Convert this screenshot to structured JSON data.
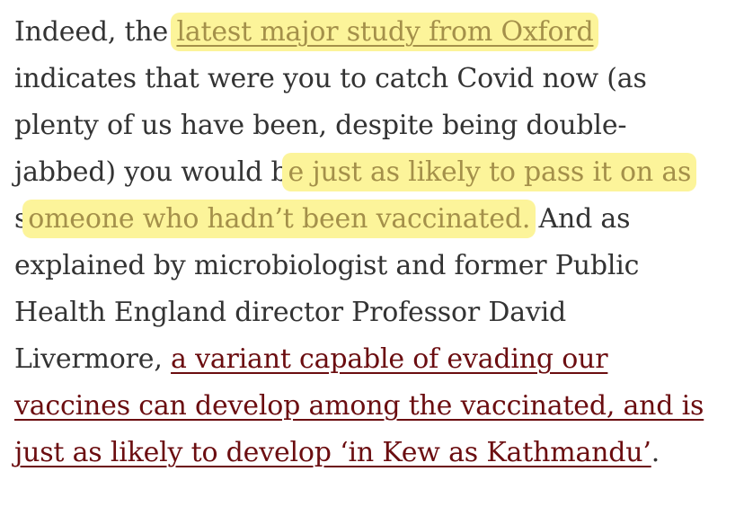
{
  "article": {
    "l1_pre": "Indeed, the ",
    "l1_link": "latest major study from Oxford",
    "l2": "indicates that were you to catch Covid now (as",
    "l3": "plenty of us have been, despite being double-",
    "l4_pre": "jabbed) you would b",
    "l4_hl": "e just as likely to pass it on as",
    "l5_pre": "s",
    "l5_hl": "omeone who hadn’t been vaccinated.",
    "l5_post": " And as",
    "l6": "explained by microbiologist and former Public",
    "l7": "Health England director Professor David",
    "l8_pre": "Livermore, ",
    "l8_link": "a variant capable of evading our",
    "l9_link": "vaccines can develop among the vaccinated, and is",
    "l10_link": "just as likely to develop ‘in Kew as Kathmandu’",
    "l10_post": "."
  },
  "colors": {
    "text": "#333333",
    "highlight": "#fcf49a",
    "highlighted_text": "#a4904a",
    "link": "#6b0d10"
  }
}
